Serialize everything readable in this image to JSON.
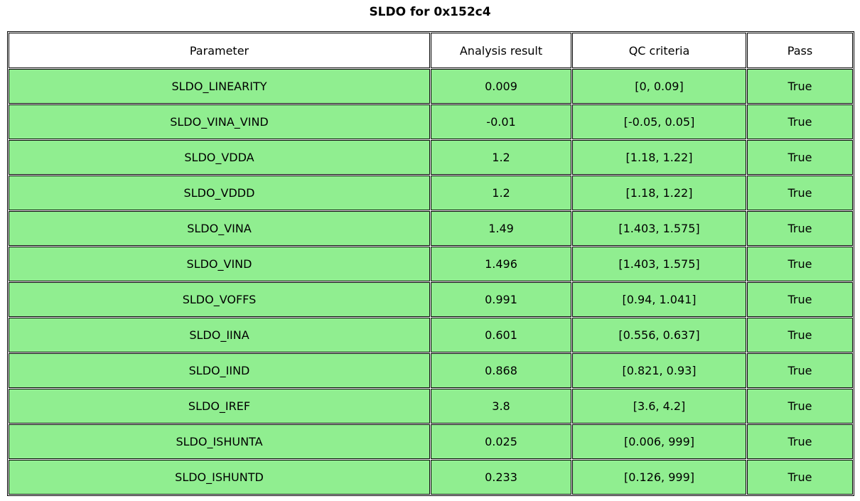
{
  "chart_data": {
    "type": "table",
    "title": "SLDO for 0x152c4",
    "columns": [
      "Parameter",
      "Analysis result",
      "QC criteria",
      "Pass"
    ],
    "rows": [
      [
        "SLDO_LINEARITY",
        "0.009",
        "[0, 0.09]",
        "True"
      ],
      [
        "SLDO_VINA_VIND",
        "-0.01",
        "[-0.05, 0.05]",
        "True"
      ],
      [
        "SLDO_VDDA",
        "1.2",
        "[1.18, 1.22]",
        "True"
      ],
      [
        "SLDO_VDDD",
        "1.2",
        "[1.18, 1.22]",
        "True"
      ],
      [
        "SLDO_VINA",
        "1.49",
        "[1.403, 1.575]",
        "True"
      ],
      [
        "SLDO_VIND",
        "1.496",
        "[1.403, 1.575]",
        "True"
      ],
      [
        "SLDO_VOFFS",
        "0.991",
        "[0.94, 1.041]",
        "True"
      ],
      [
        "SLDO_IINA",
        "0.601",
        "[0.556, 0.637]",
        "True"
      ],
      [
        "SLDO_IIND",
        "0.868",
        "[0.821, 0.93]",
        "True"
      ],
      [
        "SLDO_IREF",
        "3.8",
        "[3.6, 4.2]",
        "True"
      ],
      [
        "SLDO_ISHUNTA",
        "0.025",
        "[0.006, 999]",
        "True"
      ],
      [
        "SLDO_ISHUNTD",
        "0.233",
        "[0.126, 999]",
        "True"
      ]
    ],
    "layout": {
      "legend": "none",
      "grid": "table-borders",
      "header_row": true,
      "all_rows_pass": true
    },
    "colors": {
      "row_fill": "#90EE90",
      "header_fill": "#ffffff",
      "border": "#000000",
      "text": "#000000"
    }
  }
}
